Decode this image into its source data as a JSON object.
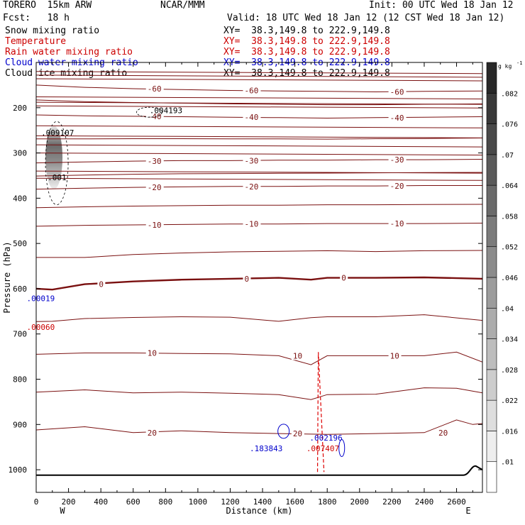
{
  "header": {
    "model": "TORERO  15km ARW",
    "center": "NCAR/MMM",
    "init": "Init: 00 UTC Wed 18 Jan 12",
    "fcst": "Fcst:   18 h",
    "valid": "Valid: 18 UTC Wed 18 Jan 12 (12 CST Wed 18 Jan 12)"
  },
  "fields": [
    {
      "name": "Snow mixing ratio",
      "xy": "",
      "color": "#000000"
    },
    {
      "name": "Temperature",
      "xy": "XY=  38.3,149.8 to 222.9,149.8",
      "color": "#cc0000"
    },
    {
      "name": "Rain water mixing ratio",
      "xy": "XY=  38.3,149.8 to 222.9,149.8",
      "color": "#cc0000"
    },
    {
      "name": "Cloud water mixing ratio",
      "xy": "XY=  38.3,149.8 to 222.9,149.8",
      "color": "#0000cc"
    },
    {
      "name": "Cloud ice mixing ratio",
      "xy": "XY=  38.3,149.8 to 222.9,149.8",
      "color": "#000000"
    }
  ],
  "xy_top": "XY=  38.3,149.8 to 222.9,149.8",
  "chart_data": {
    "type": "contour",
    "xlabel": "Distance (km)",
    "ylabel": "Pressure (hPa)",
    "xlim": [
      0,
      2760
    ],
    "ylim": [
      1050,
      100
    ],
    "x_ticks": [
      0,
      200,
      400,
      600,
      800,
      1000,
      1200,
      1400,
      1600,
      1800,
      2000,
      2200,
      2400,
      2600
    ],
    "y_ticks": [
      200,
      300,
      400,
      500,
      600,
      700,
      800,
      900,
      1000
    ],
    "x_end_labels": {
      "left": "W",
      "right": "E"
    },
    "colorbar": {
      "unit_label": "g kg",
      "unit_exponent": "-1",
      "levels": [
        0.01,
        0.016,
        0.022,
        0.028,
        0.034,
        0.04,
        0.046,
        0.052,
        0.058,
        0.064,
        0.07,
        0.076,
        0.082
      ],
      "tick_labels": [
        ".01",
        ".016",
        ".022",
        ".028",
        ".034",
        ".04",
        ".046",
        ".052",
        ".058",
        ".064",
        ".07",
        ".076",
        ".082"
      ]
    },
    "temperature_contours": [
      {
        "label": "-60",
        "x": [
          0,
          300,
          600,
          900,
          1200,
          1500,
          1800,
          2100,
          2400,
          2760
        ],
        "p": [
          150,
          155,
          158,
          160,
          162,
          163,
          164,
          165,
          164,
          163
        ]
      },
      {
        "label": "-40",
        "x": [
          0,
          300,
          600,
          900,
          1200,
          1500,
          1800,
          2100,
          2400,
          2760
        ],
        "p": [
          216,
          218,
          219,
          220,
          221,
          222,
          223,
          222,
          221,
          220
        ]
      },
      {
        "label": "-30",
        "x": [
          0,
          300,
          600,
          900,
          1200,
          1500,
          1800,
          2100,
          2400,
          2760
        ],
        "p": [
          322,
          320,
          318,
          317,
          317,
          316,
          316,
          315,
          315,
          314
        ]
      },
      {
        "label": "-20",
        "x": [
          0,
          300,
          600,
          900,
          1200,
          1500,
          1800,
          2100,
          2400,
          2760
        ],
        "p": [
          380,
          378,
          376,
          375,
          374,
          374,
          373,
          373,
          372,
          372
        ]
      },
      {
        "label": "-10",
        "x": [
          0,
          300,
          600,
          900,
          1200,
          1500,
          1800,
          2100,
          2400,
          2760
        ],
        "p": [
          462,
          460,
          459,
          458,
          457,
          457,
          456,
          456,
          456,
          455
        ]
      },
      {
        "label": "0",
        "x": [
          0,
          100,
          300,
          600,
          900,
          1200,
          1500,
          1700,
          1800,
          2100,
          2400,
          2760
        ],
        "p": [
          600,
          602,
          590,
          584,
          580,
          578,
          576,
          580,
          576,
          576,
          575,
          578
        ]
      },
      {
        "label": "10",
        "x": [
          0,
          300,
          600,
          900,
          1200,
          1500,
          1700,
          1800,
          2100,
          2400,
          2600,
          2760
        ],
        "p": [
          745,
          742,
          742,
          743,
          744,
          748,
          768,
          748,
          748,
          748,
          740,
          762
        ]
      },
      {
        "label": "20",
        "x": [
          0,
          300,
          600,
          900,
          1200,
          1500,
          1800,
          2100,
          2400,
          2600,
          2700,
          2760
        ],
        "p": [
          912,
          905,
          918,
          914,
          918,
          920,
          922,
          920,
          918,
          890,
          900,
          898
        ]
      }
    ],
    "extrema_labels": [
      {
        "field": "Cloud ice mixing ratio",
        "text": ".009107",
        "x": 110,
        "p": 255
      },
      {
        "field": "Cloud ice mixing ratio",
        "text": ".004193",
        "x": 780,
        "p": 206
      },
      {
        "field": "Cloud ice mixing ratio",
        "text": ".001",
        "x": 150,
        "p": 354
      },
      {
        "field": "Cloud water mixing ratio",
        "text": ".183843",
        "x": 1400,
        "p": 953
      },
      {
        "field": "Cloud water mixing ratio",
        "text": ".002196",
        "x": 1770,
        "p": 929
      },
      {
        "field": "Cloud water mixing ratio",
        "text": ".00019",
        "x": 20,
        "p": 621
      },
      {
        "field": "Rain water mixing ratio",
        "text": ".007407",
        "x": 1750,
        "p": 953
      },
      {
        "field": "Rain water mixing ratio",
        "text": ".00060",
        "x": 20,
        "p": 685
      }
    ],
    "snow_maximum": {
      "x": 110,
      "p_top": 240,
      "p_bottom": 380
    }
  }
}
